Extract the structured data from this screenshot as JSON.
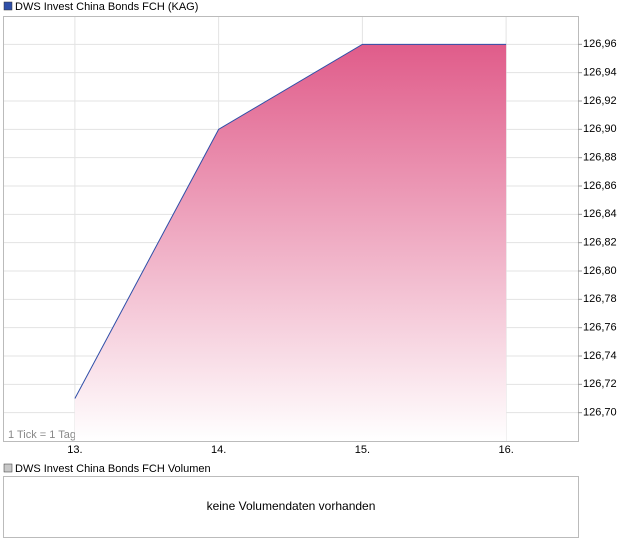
{
  "chart_data": {
    "type": "area",
    "title": "DWS Invest China Bonds FCH (KAG)",
    "annotation": "1 Tick = 1 Tag",
    "categories": [
      "13.",
      "14.",
      "15.",
      "16."
    ],
    "series": [
      {
        "name": "DWS Invest China Bonds FCH (KAG)",
        "color": "#2f4fa8",
        "fill": "#e05c8a",
        "values": [
          126.71,
          126.9,
          126.96,
          126.96
        ]
      }
    ],
    "ylim": [
      126.68,
      126.98
    ],
    "yticks": [
      {
        "value": 126.7,
        "label": "126,70"
      },
      {
        "value": 126.72,
        "label": "126,72"
      },
      {
        "value": 126.74,
        "label": "126,74"
      },
      {
        "value": 126.76,
        "label": "126,76"
      },
      {
        "value": 126.78,
        "label": "126,78"
      },
      {
        "value": 126.8,
        "label": "126,80"
      },
      {
        "value": 126.82,
        "label": "126,82"
      },
      {
        "value": 126.84,
        "label": "126,84"
      },
      {
        "value": 126.86,
        "label": "126,86"
      },
      {
        "value": 126.88,
        "label": "126,88"
      },
      {
        "value": 126.9,
        "label": "126,90"
      },
      {
        "value": 126.92,
        "label": "126,92"
      },
      {
        "value": 126.94,
        "label": "126,94"
      },
      {
        "value": 126.96,
        "label": "126,96"
      }
    ],
    "grid": true
  },
  "volume_panel": {
    "title": "DWS Invest China Bonds FCH Volumen",
    "message": "keine Volumendaten vorhanden",
    "color": "#c8c8c8"
  }
}
